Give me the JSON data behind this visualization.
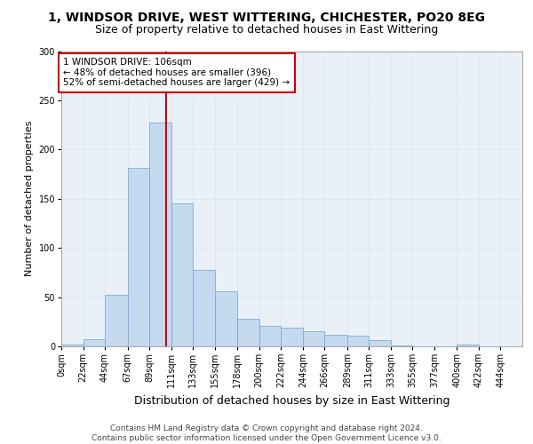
{
  "title1": "1, WINDSOR DRIVE, WEST WITTERING, CHICHESTER, PO20 8EG",
  "title2": "Size of property relative to detached houses in East Wittering",
  "xlabel": "Distribution of detached houses by size in East Wittering",
  "ylabel": "Number of detached properties",
  "bar_color": "#c5d9ef",
  "bar_edge_color": "#7aafd4",
  "bar_heights": [
    2,
    7,
    52,
    181,
    227,
    145,
    78,
    56,
    28,
    21,
    19,
    15,
    12,
    11,
    6,
    1,
    0,
    0,
    2,
    0,
    0
  ],
  "bin_edges": [
    0,
    22,
    44,
    67,
    89,
    111,
    133,
    155,
    178,
    200,
    222,
    244,
    266,
    289,
    311,
    333,
    355,
    377,
    400,
    422,
    444,
    466
  ],
  "tick_labels": [
    "0sqm",
    "22sqm",
    "44sqm",
    "67sqm",
    "89sqm",
    "111sqm",
    "133sqm",
    "155sqm",
    "178sqm",
    "200sqm",
    "222sqm",
    "244sqm",
    "266sqm",
    "289sqm",
    "311sqm",
    "333sqm",
    "355sqm",
    "377sqm",
    "400sqm",
    "422sqm",
    "444sqm"
  ],
  "property_value": 106,
  "vline_color": "#cc0000",
  "annotation_text": "1 WINDSOR DRIVE: 106sqm\n← 48% of detached houses are smaller (396)\n52% of semi-detached houses are larger (429) →",
  "annotation_box_color": "#ffffff",
  "annotation_box_edge": "#cc0000",
  "ylim": [
    0,
    300
  ],
  "yticks": [
    0,
    50,
    100,
    150,
    200,
    250,
    300
  ],
  "grid_color": "#dde6f0",
  "background_color": "#eaf0f8",
  "footer_text": "Contains HM Land Registry data © Crown copyright and database right 2024.\nContains public sector information licensed under the Open Government Licence v3.0.",
  "title1_fontsize": 10,
  "title2_fontsize": 9,
  "xlabel_fontsize": 9,
  "ylabel_fontsize": 8,
  "tick_fontsize": 7,
  "annotation_fontsize": 7.5,
  "footer_fontsize": 6.5
}
